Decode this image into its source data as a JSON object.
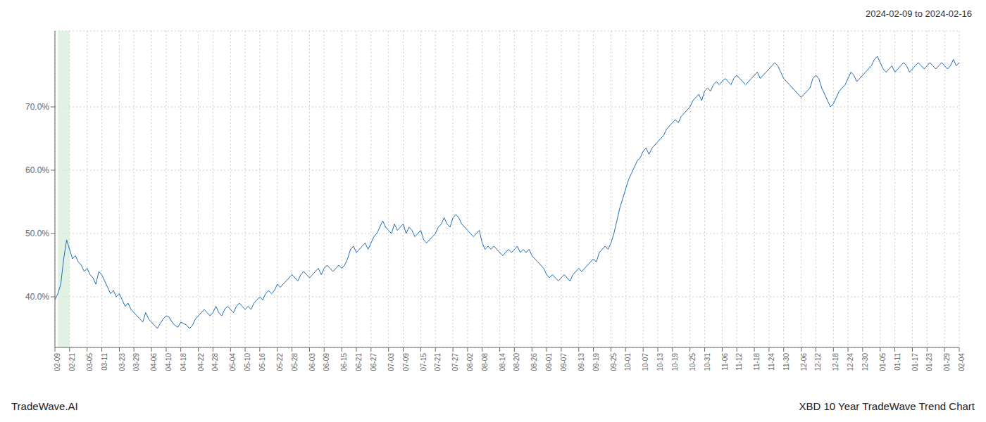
{
  "chart_data": {
    "type": "line",
    "title": "XBD 10 Year TradeWave Trend Chart",
    "subtitle": "2024-02-09 to 2024-02-16",
    "annotations": [
      "TradeWave.AI"
    ],
    "color": "#1f6bb5",
    "grid": true,
    "ylim": [
      32,
      82
    ],
    "yticks": [
      {
        "value": 40,
        "label": "40.0%"
      },
      {
        "value": 50,
        "label": "50.0%"
      },
      {
        "value": 60,
        "label": "60.0%"
      },
      {
        "value": 70,
        "label": "70.0%"
      }
    ],
    "categories": [
      "02-09",
      null,
      null,
      null,
      null,
      "02-21",
      null,
      null,
      null,
      null,
      null,
      "03-05",
      null,
      null,
      null,
      null,
      "03-11",
      null,
      null,
      null,
      null,
      null,
      "03-23",
      null,
      null,
      null,
      null,
      "03-29",
      null,
      null,
      null,
      null,
      null,
      "04-06",
      null,
      null,
      null,
      null,
      "04-10",
      null,
      null,
      null,
      null,
      "04-18",
      null,
      null,
      null,
      null,
      null,
      "04-22",
      null,
      null,
      null,
      null,
      "04-28",
      null,
      null,
      null,
      null,
      null,
      "05-04",
      null,
      null,
      null,
      null,
      "05-10",
      null,
      null,
      null,
      null,
      "05-16",
      null,
      null,
      null,
      null,
      null,
      "05-22",
      null,
      null,
      null,
      null,
      "05-28",
      null,
      null,
      null,
      null,
      null,
      "06-03",
      null,
      null,
      null,
      null,
      "06-09",
      null,
      null,
      null,
      null,
      null,
      "06-15",
      null,
      null,
      null,
      null,
      "06-21",
      null,
      null,
      null,
      null,
      "06-27",
      null,
      null,
      null,
      null,
      null,
      "07-03",
      null,
      null,
      null,
      null,
      "07-09",
      null,
      null,
      null,
      null,
      null,
      "07-15",
      null,
      null,
      null,
      null,
      "07-21",
      null,
      null,
      null,
      null,
      null,
      "07-27",
      null,
      null,
      null,
      null,
      "08-02",
      null,
      null,
      null,
      null,
      "08-08",
      null,
      null,
      null,
      null,
      null,
      "08-14",
      null,
      null,
      null,
      null,
      "08-20",
      null,
      null,
      null,
      null,
      null,
      "08-26",
      null,
      null,
      null,
      null,
      "09-01",
      null,
      null,
      null,
      null,
      "09-07",
      null,
      null,
      null,
      null,
      null,
      "09-13",
      null,
      null,
      null,
      null,
      "09-19",
      null,
      null,
      null,
      null,
      null,
      "09-25",
      null,
      null,
      null,
      null,
      "10-01",
      null,
      null,
      null,
      null,
      null,
      "10-07",
      null,
      null,
      null,
      null,
      "10-13",
      null,
      null,
      null,
      null,
      "10-19",
      null,
      null,
      null,
      null,
      null,
      "10-25",
      null,
      null,
      null,
      null,
      "10-31",
      null,
      null,
      null,
      null,
      null,
      "11-06",
      null,
      null,
      null,
      null,
      "11-12",
      null,
      null,
      null,
      null,
      null,
      "11-18",
      null,
      null,
      null,
      null,
      "11-24",
      null,
      null,
      null,
      null,
      "11-30",
      null,
      null,
      null,
      null,
      null,
      "12-06",
      null,
      null,
      null,
      null,
      "12-12",
      null,
      null,
      null,
      null,
      null,
      "12-18",
      null,
      null,
      null,
      null,
      "12-24",
      null,
      null,
      null,
      null,
      "12-30",
      null,
      null,
      null,
      null,
      null,
      "01-05",
      null,
      null,
      null,
      null,
      "01-11",
      null,
      null,
      null,
      null,
      null,
      "01-17",
      null,
      null,
      null,
      null,
      "01-23",
      null,
      null,
      null,
      null,
      null,
      "01-29",
      null,
      null,
      null,
      null,
      "02-04"
    ],
    "values": [
      39.5,
      40.5,
      42.0,
      46.0,
      49.0,
      47.5,
      46.0,
      46.5,
      45.5,
      45.0,
      44.0,
      44.5,
      43.5,
      43.0,
      42.0,
      44.0,
      43.5,
      42.5,
      41.5,
      40.5,
      41.0,
      40.0,
      40.5,
      39.5,
      38.5,
      39.0,
      38.0,
      37.5,
      37.0,
      36.5,
      36.0,
      37.5,
      36.5,
      36.0,
      35.5,
      35.0,
      35.8,
      36.5,
      37.0,
      36.8,
      36.0,
      35.5,
      35.2,
      36.0,
      35.8,
      35.5,
      35.0,
      35.5,
      36.5,
      37.0,
      37.5,
      38.0,
      37.5,
      37.0,
      37.5,
      38.5,
      37.5,
      37.0,
      38.0,
      38.5,
      38.0,
      37.5,
      38.5,
      39.0,
      38.5,
      38.0,
      38.5,
      38.0,
      39.0,
      39.5,
      40.0,
      39.5,
      40.5,
      41.0,
      40.5,
      41.0,
      42.0,
      41.5,
      42.0,
      42.5,
      43.0,
      43.5,
      43.0,
      42.5,
      43.5,
      44.0,
      43.5,
      43.0,
      43.5,
      44.0,
      44.5,
      43.5,
      44.5,
      45.0,
      44.5,
      44.0,
      44.5,
      45.0,
      44.5,
      45.0,
      46.0,
      47.5,
      48.0,
      47.0,
      47.5,
      48.0,
      48.5,
      47.5,
      48.5,
      49.5,
      50.0,
      51.0,
      52.0,
      51.0,
      50.5,
      50.0,
      51.5,
      50.5,
      51.0,
      51.5,
      50.0,
      51.0,
      50.5,
      49.5,
      50.0,
      50.5,
      49.0,
      48.5,
      49.0,
      49.5,
      50.0,
      51.0,
      51.5,
      52.5,
      51.5,
      51.0,
      52.5,
      53.0,
      52.5,
      51.5,
      51.0,
      50.5,
      50.0,
      49.5,
      50.0,
      50.5,
      48.5,
      47.5,
      48.0,
      47.5,
      48.0,
      47.5,
      47.0,
      46.5,
      47.0,
      47.5,
      47.0,
      47.5,
      48.0,
      47.0,
      47.5,
      47.0,
      47.5,
      46.5,
      46.0,
      45.5,
      45.0,
      44.5,
      43.5,
      43.0,
      43.5,
      43.0,
      42.5,
      43.0,
      43.5,
      43.0,
      42.5,
      43.5,
      44.0,
      44.5,
      44.0,
      44.5,
      45.0,
      45.5,
      46.0,
      45.5,
      47.0,
      47.5,
      48.0,
      47.5,
      48.5,
      50.0,
      52.0,
      54.0,
      55.5,
      57.0,
      58.5,
      59.5,
      60.5,
      61.5,
      62.0,
      63.0,
      63.5,
      62.5,
      63.5,
      64.0,
      64.5,
      65.0,
      65.5,
      66.5,
      67.0,
      67.5,
      68.0,
      67.5,
      68.5,
      69.0,
      69.5,
      70.0,
      71.0,
      71.5,
      72.0,
      71.0,
      72.5,
      73.0,
      72.5,
      73.5,
      74.0,
      73.5,
      74.0,
      74.5,
      74.0,
      73.5,
      74.5,
      75.0,
      74.5,
      74.0,
      73.5,
      74.0,
      74.5,
      75.0,
      75.5,
      74.5,
      75.0,
      75.5,
      76.0,
      76.5,
      77.0,
      76.5,
      75.5,
      74.5,
      74.0,
      73.5,
      73.0,
      72.5,
      72.0,
      71.5,
      72.0,
      72.5,
      73.0,
      74.5,
      75.0,
      74.5,
      73.0,
      72.0,
      71.0,
      70.0,
      70.5,
      71.5,
      72.5,
      73.0,
      73.5,
      74.5,
      75.5,
      75.0,
      74.0,
      74.5,
      75.0,
      75.5,
      76.0,
      76.5,
      77.5,
      78.0,
      77.0,
      76.0,
      75.5,
      76.0,
      76.5,
      75.5,
      76.0,
      76.5,
      77.0,
      76.5,
      75.5,
      76.0,
      76.5,
      77.0,
      76.5,
      76.0,
      76.5,
      77.0,
      76.5,
      76.0,
      76.5,
      77.0,
      76.5,
      76.0,
      76.5,
      77.5,
      76.5,
      77.0
    ]
  }
}
